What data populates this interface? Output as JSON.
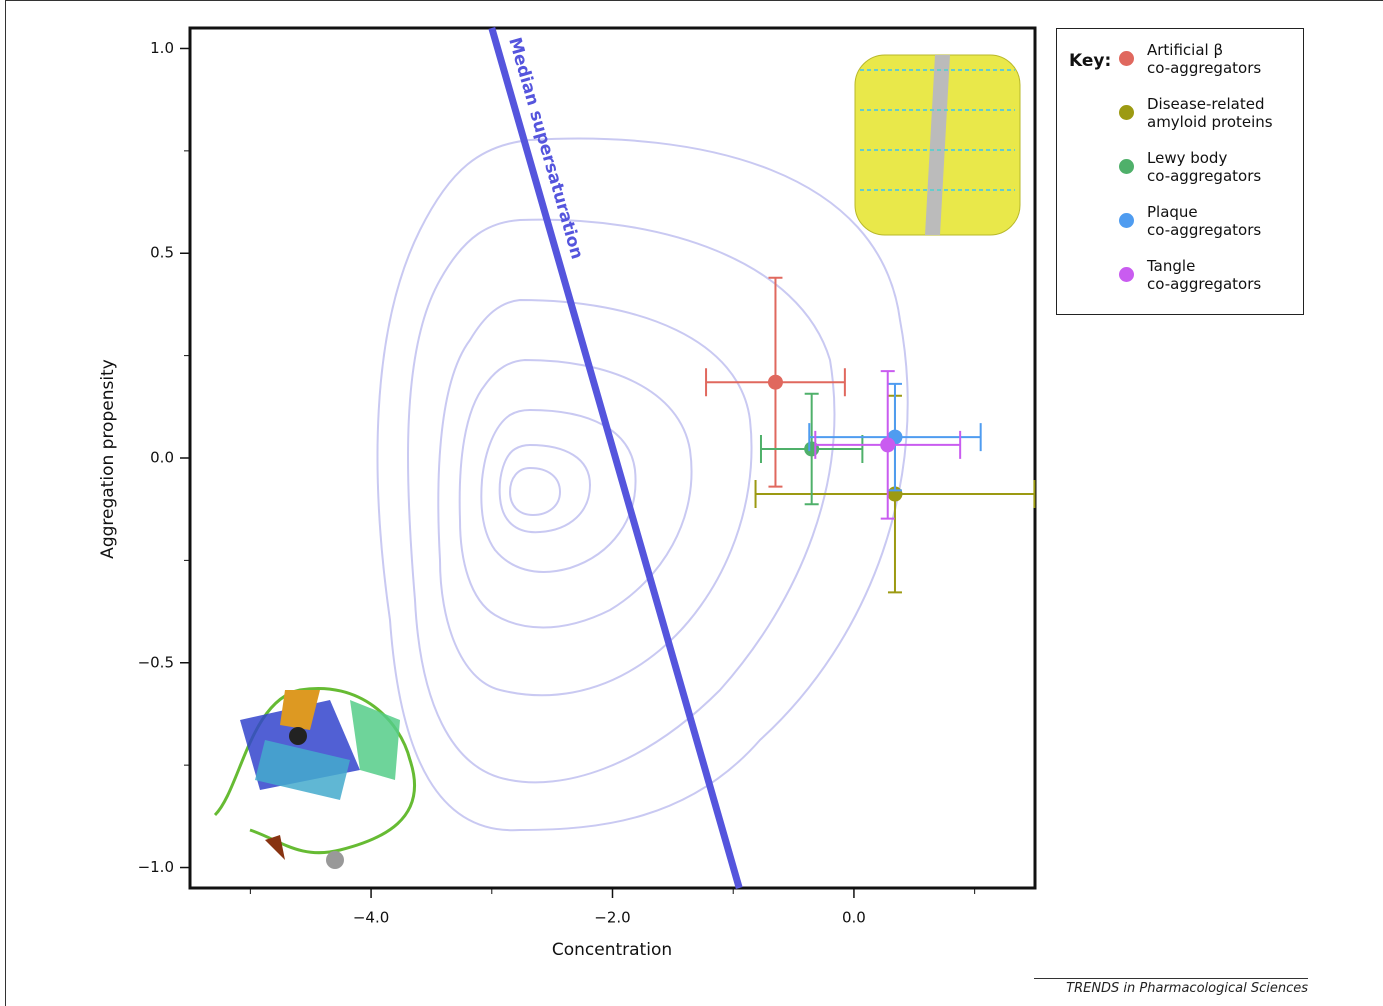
{
  "chart_data": {
    "type": "scatter",
    "xlabel": "Concentration",
    "ylabel": "Aggregation propensity",
    "xlim": [
      -5.5,
      1.5
    ],
    "ylim": [
      -1.05,
      1.05
    ],
    "xticks": [
      {
        "value": -4,
        "label": "−4.0"
      },
      {
        "value": -2,
        "label": "−2.0"
      },
      {
        "value": 0,
        "label": "0.0"
      }
    ],
    "yticks": [
      {
        "value": 1,
        "label": "1.0"
      },
      {
        "value": 0.5,
        "label": "0.5"
      },
      {
        "value": 0,
        "label": "0.0"
      },
      {
        "value": -0.5,
        "label": "−0.5"
      },
      {
        "value": -1,
        "label": "−1.0"
      }
    ],
    "xminorticks": [
      -5,
      -3,
      -1,
      1
    ],
    "yminorticks": [
      0.75,
      0.25,
      -0.25,
      -0.75
    ],
    "legend_title": "Key:",
    "median_line": {
      "label": "Median supersaturation",
      "color": "#5555dd",
      "x": [
        -3.0,
        -0.95
      ],
      "y": [
        1.05,
        -1.05
      ]
    },
    "series": [
      {
        "name": "Artificial β\nco-aggregators",
        "color": "#e0685e",
        "x": [
          -0.65
        ],
        "values": [
          0.185
        ],
        "x_err": [
          0.575
        ],
        "y_err": [
          0.255
        ]
      },
      {
        "name": "Disease-related\namyloid proteins",
        "color": "#9c9a12",
        "x": [
          0.34
        ],
        "values": [
          -0.088
        ],
        "x_err": [
          1.155
        ],
        "y_err": [
          0.24
        ]
      },
      {
        "name": "Lewy body\nco-aggregators",
        "color": "#4fb06a",
        "x": [
          -0.35
        ],
        "values": [
          0.022
        ],
        "x_err": [
          0.42
        ],
        "y_err": [
          0.135
        ]
      },
      {
        "name": "Plaque\nco-aggregators",
        "color": "#4f9cf0",
        "x": [
          0.34
        ],
        "values": [
          0.051
        ],
        "x_err": [
          0.71
        ],
        "y_err": [
          0.13
        ]
      },
      {
        "name": "Tangle\nco-aggregators",
        "color": "#c95cf0",
        "x": [
          0.28
        ],
        "values": [
          0.032
        ],
        "x_err": [
          0.6
        ],
        "y_err": [
          0.18
        ]
      }
    ]
  },
  "source": "TRENDS in Pharmacological Sciences"
}
